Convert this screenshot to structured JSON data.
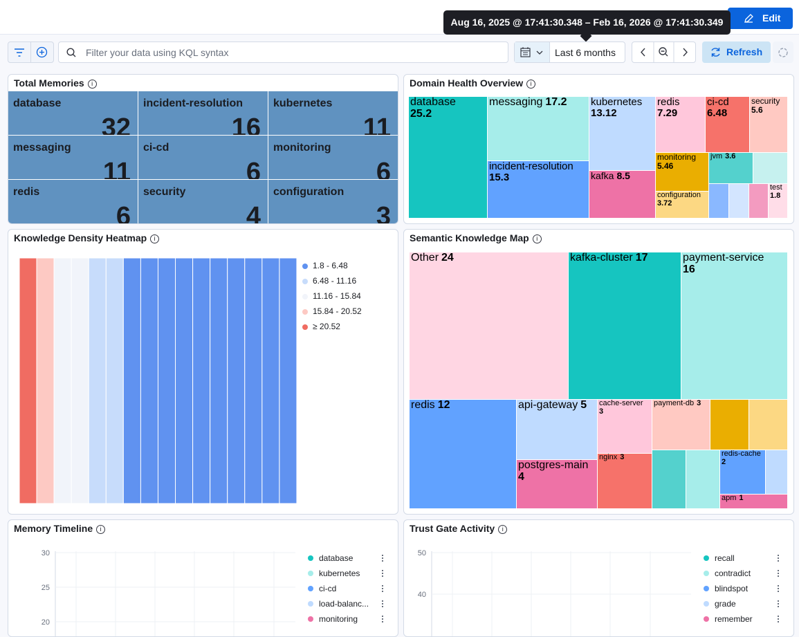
{
  "header": {
    "edit": "Edit",
    "tooltip": "Aug 16, 2025 @ 17:41:30.348 – Feb 16, 2026 @ 17:41:30.349"
  },
  "query_bar": {
    "placeholder": "Filter your data using KQL syntax",
    "time_range": "Last 6 months",
    "refresh": "Refresh"
  },
  "panels": {
    "total_memories": {
      "title": "Total Memories",
      "color": "#6092c0",
      "tiles": [
        {
          "label": "database",
          "value": 32
        },
        {
          "label": "incident-resolution",
          "value": 16
        },
        {
          "label": "kubernetes",
          "value": 11
        },
        {
          "label": "messaging",
          "value": 11
        },
        {
          "label": "ci-cd",
          "value": 6
        },
        {
          "label": "monitoring",
          "value": 6
        },
        {
          "label": "redis",
          "value": 6
        },
        {
          "label": "security",
          "value": 4
        },
        {
          "label": "configuration",
          "value": 3
        }
      ]
    },
    "domain_health": {
      "title": "Domain Health Overview",
      "cells": [
        {
          "label": "database",
          "value": 25.2,
          "color": "#16c5c0"
        },
        {
          "label": "messaging",
          "value": 17.2,
          "color": "#a6edea"
        },
        {
          "label": "incident-resolution",
          "value": 15.3,
          "color": "#61a2ff"
        },
        {
          "label": "kubernetes",
          "value": 13.12,
          "color": "#bfdbff"
        },
        {
          "label": "kafka",
          "value": 8.5,
          "color": "#ee72a6"
        },
        {
          "label": "redis",
          "value": 7.29,
          "color": "#ffc7db"
        },
        {
          "label": "ci-cd",
          "value": 6.48,
          "color": "#f6726a"
        },
        {
          "label": "security",
          "value": 5.6,
          "color": "#ffc9c2"
        },
        {
          "label": "monitoring",
          "value": 5.46,
          "color": "#eaae01"
        },
        {
          "label": "configuration",
          "value": 3.72,
          "color": "#fcd883"
        },
        {
          "label": "jvm",
          "value": 3.6,
          "color": "#54d1cd"
        },
        {
          "label": "test",
          "value": 1.8,
          "color": "#ffdde8"
        }
      ]
    },
    "heatmap": {
      "title": "Knowledge Density Heatmap",
      "bins": [
        1.8,
        6.48,
        11.16,
        15.84,
        20.52
      ],
      "legend": [
        {
          "label": "1.8 - 6.48",
          "color": "#6092f0"
        },
        {
          "label": "6.48 - 11.16",
          "color": "#c7dcfb"
        },
        {
          "label": "11.16 - 15.84",
          "color": "#f1f4fa"
        },
        {
          "label": "15.84 - 20.52",
          "color": "#fdc9c3"
        },
        {
          "label": "≥ 20.52",
          "color": "#f06c62"
        }
      ],
      "columns": [
        24,
        18,
        13,
        13,
        9,
        9,
        4,
        4,
        4,
        4,
        4,
        4,
        4,
        4,
        4,
        4
      ]
    },
    "semantic_map": {
      "title": "Semantic Knowledge Map",
      "cells": [
        {
          "label": "Other",
          "value": 24,
          "color": "#ffd6e3"
        },
        {
          "label": "kafka-cluster",
          "value": 17,
          "color": "#16c5c0"
        },
        {
          "label": "payment-service",
          "value": 16,
          "color": "#a6edea"
        },
        {
          "label": "redis",
          "value": 12,
          "color": "#61a2ff"
        },
        {
          "label": "api-gateway",
          "value": 5,
          "color": "#bfdbff"
        },
        {
          "label": "postgres-main",
          "value": 4,
          "color": "#ee72a6"
        },
        {
          "label": "cache-server",
          "value": 3,
          "color": "#ffc7db"
        },
        {
          "label": "nginx",
          "value": 3,
          "color": "#f6726a"
        },
        {
          "label": "payment-db",
          "value": 3,
          "color": "#ffc9c2"
        },
        {
          "label": "redis-cache",
          "value": 2,
          "color": "#61a2ff"
        },
        {
          "label": "apm",
          "value": 1,
          "color": "#ee72a6"
        }
      ]
    },
    "memory_timeline": {
      "title": "Memory Timeline",
      "yticks": [
        30,
        25,
        20
      ],
      "legend": [
        {
          "label": "database",
          "color": "#16c5c0"
        },
        {
          "label": "kubernetes",
          "color": "#a6edea"
        },
        {
          "label": "ci-cd",
          "color": "#61a2ff"
        },
        {
          "label": "load-balanc...",
          "color": "#bfdbff"
        },
        {
          "label": "monitoring",
          "color": "#ee72a6"
        }
      ]
    },
    "trust_gate": {
      "title": "Trust Gate Activity",
      "yticks": [
        50,
        40
      ],
      "legend": [
        {
          "label": "recall",
          "color": "#16c5c0"
        },
        {
          "label": "contradict",
          "color": "#a6edea"
        },
        {
          "label": "blindspot",
          "color": "#61a2ff"
        },
        {
          "label": "grade",
          "color": "#bfdbff"
        },
        {
          "label": "remember",
          "color": "#ee72a6"
        }
      ]
    }
  }
}
